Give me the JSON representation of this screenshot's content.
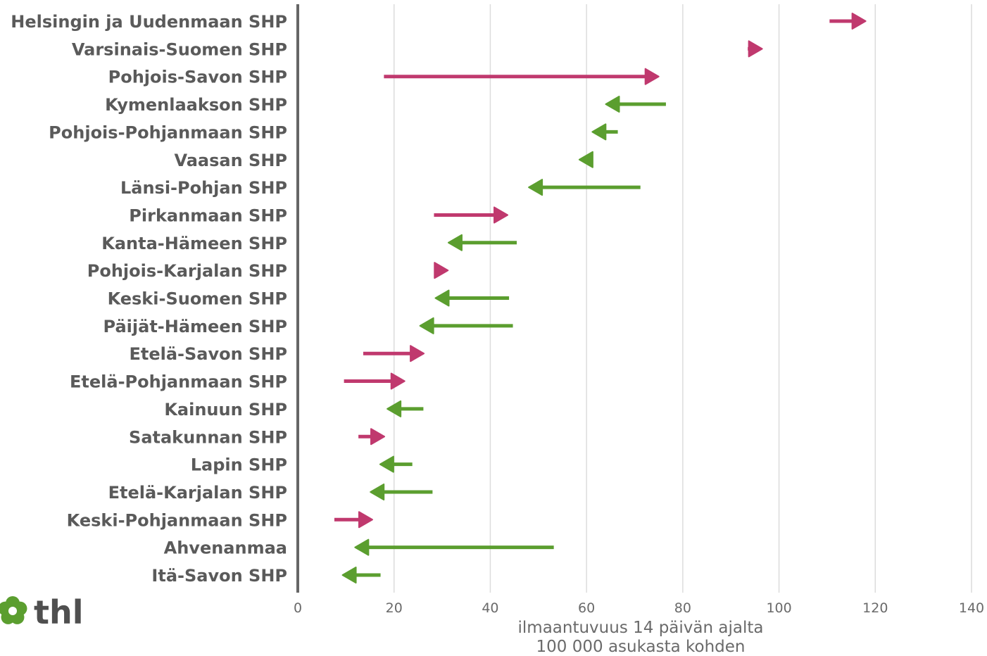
{
  "chart_data": {
    "type": "arrow",
    "categories": [
      "Helsingin ja Uudenmaan SHP",
      "Varsinais-Suomen SHP",
      "Pohjois-Savon SHP",
      "Kymenlaakson SHP",
      "Pohjois-Pohjanmaan SHP",
      "Vaasan SHP",
      "Länsi-Pohjan SHP",
      "Pirkanmaan SHP",
      "Kanta-Hämeen SHP",
      "Pohjois-Karjalan SHP",
      "Keski-Suomen SHP",
      "Päijät-Hämeen SHP",
      "Etelä-Savon SHP",
      "Etelä-Pohjanmaan SHP",
      "Kainuun SHP",
      "Satakunnan SHP",
      "Lapin SHP",
      "Etelä-Karjalan SHP",
      "Keski-Pohjanmaan SHP",
      "Ahvenanmaa",
      "Itä-Savon SHP"
    ],
    "start": [
      110.5,
      93.5,
      17.9,
      76.5,
      66.5,
      61.2,
      71.2,
      28.3,
      45.5,
      28.6,
      43.9,
      44.7,
      13.6,
      9.6,
      26.1,
      12.6,
      23.8,
      28.0,
      7.6,
      53.2,
      17.2
    ],
    "end": [
      118.0,
      96.5,
      75.0,
      64.0,
      61.2,
      58.5,
      48.0,
      43.6,
      31.3,
      31.2,
      28.6,
      25.4,
      26.2,
      22.2,
      18.6,
      18.0,
      17.1,
      15.1,
      15.5,
      11.9,
      9.3
    ],
    "colors": {
      "increase": "#c0396e",
      "decrease": "#5b9e2f",
      "grid": "#dcdcdc",
      "axis": "#666666"
    },
    "xlabel_line1": "ilmaantuvuus 14 päivän ajalta",
    "xlabel_line2": "100 000 asukasta kohden",
    "xlim": [
      0,
      140
    ],
    "xticks": [
      0,
      20,
      40,
      60,
      80,
      100,
      120,
      140
    ],
    "grid": true
  },
  "logo": {
    "text": "thl",
    "icon": "flower-icon",
    "color": "#5b9e2f"
  }
}
